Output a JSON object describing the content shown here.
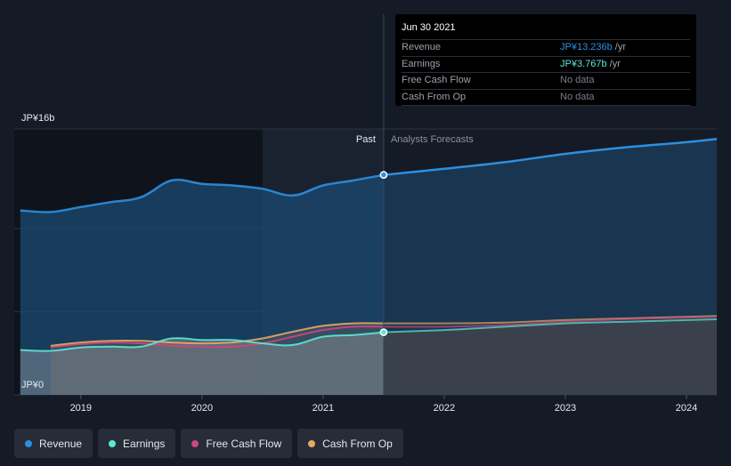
{
  "chart_data": {
    "type": "area",
    "y_axis": {
      "top_label": "JP¥16b",
      "bottom_label": "JP¥0",
      "ylim": [
        0,
        16
      ]
    },
    "x_axis": {
      "ticks": [
        "2019",
        "2020",
        "2021",
        "2022",
        "2023",
        "2024"
      ],
      "xlim": [
        2018.45,
        2024.25
      ]
    },
    "divider": {
      "x": 2021.5,
      "past_label": "Past",
      "forecast_label": "Analysts Forecasts"
    },
    "shade_start": 2020.5,
    "grid": true,
    "series": [
      {
        "name": "Revenue",
        "key": "revenue",
        "color": "#2d8fe0",
        "points": [
          [
            2018.5,
            11.1
          ],
          [
            2018.75,
            11.0
          ],
          [
            2019.0,
            11.3
          ],
          [
            2019.25,
            11.6
          ],
          [
            2019.5,
            11.9
          ],
          [
            2019.75,
            12.9
          ],
          [
            2020.0,
            12.7
          ],
          [
            2020.25,
            12.6
          ],
          [
            2020.5,
            12.4
          ],
          [
            2020.75,
            12.0
          ],
          [
            2021.0,
            12.6
          ],
          [
            2021.25,
            12.9
          ],
          [
            2021.5,
            13.236
          ],
          [
            2022.0,
            13.6
          ],
          [
            2022.5,
            14.0
          ],
          [
            2023.0,
            14.5
          ],
          [
            2023.5,
            14.9
          ],
          [
            2024.0,
            15.2
          ],
          [
            2024.25,
            15.4
          ]
        ]
      },
      {
        "name": "Earnings",
        "key": "earnings",
        "color": "#5ee8d4",
        "points": [
          [
            2018.5,
            2.7
          ],
          [
            2018.75,
            2.65
          ],
          [
            2019.0,
            2.85
          ],
          [
            2019.25,
            2.9
          ],
          [
            2019.5,
            2.9
          ],
          [
            2019.75,
            3.4
          ],
          [
            2020.0,
            3.3
          ],
          [
            2020.25,
            3.3
          ],
          [
            2020.5,
            3.1
          ],
          [
            2020.75,
            3.0
          ],
          [
            2021.0,
            3.5
          ],
          [
            2021.25,
            3.6
          ],
          [
            2021.5,
            3.767
          ],
          [
            2022.0,
            3.9
          ],
          [
            2022.5,
            4.1
          ],
          [
            2023.0,
            4.3
          ],
          [
            2023.5,
            4.4
          ],
          [
            2024.0,
            4.5
          ],
          [
            2024.25,
            4.55
          ]
        ]
      },
      {
        "name": "Free Cash Flow",
        "key": "fcf",
        "color": "#d0467a",
        "points": [
          [
            2018.75,
            2.85
          ],
          [
            2019.0,
            3.05
          ],
          [
            2019.25,
            3.15
          ],
          [
            2019.5,
            3.1
          ],
          [
            2019.75,
            2.95
          ],
          [
            2020.0,
            2.9
          ],
          [
            2020.25,
            2.9
          ],
          [
            2020.5,
            3.1
          ],
          [
            2020.75,
            3.5
          ],
          [
            2021.0,
            3.9
          ],
          [
            2021.25,
            4.1
          ],
          [
            2021.5,
            4.1
          ],
          [
            2022.0,
            4.1
          ],
          [
            2022.5,
            4.2
          ],
          [
            2023.0,
            4.4
          ],
          [
            2023.5,
            4.55
          ],
          [
            2024.0,
            4.65
          ],
          [
            2024.25,
            4.7
          ]
        ]
      },
      {
        "name": "Cash From Op",
        "key": "cfo",
        "color": "#e8a860",
        "points": [
          [
            2018.75,
            2.95
          ],
          [
            2019.0,
            3.15
          ],
          [
            2019.25,
            3.25
          ],
          [
            2019.5,
            3.25
          ],
          [
            2019.75,
            3.15
          ],
          [
            2020.0,
            3.1
          ],
          [
            2020.25,
            3.15
          ],
          [
            2020.5,
            3.4
          ],
          [
            2020.75,
            3.8
          ],
          [
            2021.0,
            4.15
          ],
          [
            2021.25,
            4.3
          ],
          [
            2021.5,
            4.3
          ],
          [
            2022.0,
            4.3
          ],
          [
            2022.5,
            4.35
          ],
          [
            2023.0,
            4.5
          ],
          [
            2023.5,
            4.6
          ],
          [
            2024.0,
            4.7
          ],
          [
            2024.25,
            4.75
          ]
        ]
      }
    ]
  },
  "tooltip": {
    "date": "Jun 30 2021",
    "rows": [
      {
        "label": "Revenue",
        "value": "JP¥13.236b",
        "unit": "/yr",
        "color": "#2d8fe0"
      },
      {
        "label": "Earnings",
        "value": "JP¥3.767b",
        "unit": "/yr",
        "color": "#5ee8d4"
      },
      {
        "label": "Free Cash Flow",
        "value": "No data",
        "unit": "",
        "color": "#7a7f87"
      },
      {
        "label": "Cash From Op",
        "value": "No data",
        "unit": "",
        "color": "#7a7f87"
      }
    ]
  },
  "legend": [
    {
      "label": "Revenue",
      "color": "#2d8fe0"
    },
    {
      "label": "Earnings",
      "color": "#5ee8d4"
    },
    {
      "label": "Free Cash Flow",
      "color": "#d0467a"
    },
    {
      "label": "Cash From Op",
      "color": "#e8a860"
    }
  ]
}
